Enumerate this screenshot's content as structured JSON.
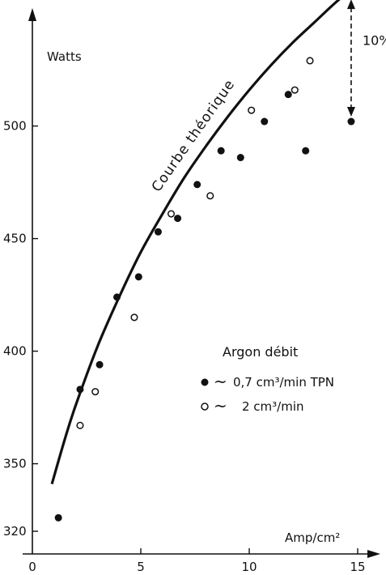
{
  "chart_data": {
    "type": "scatter",
    "xlabel": "Amp/cm²",
    "ylabel": "Watts",
    "xlim": [
      0,
      16
    ],
    "ylim": [
      320,
      560
    ],
    "x_ticks": [
      {
        "value": 0,
        "label": "0"
      },
      {
        "value": 5,
        "label": "5"
      },
      {
        "value": 10,
        "label": "10"
      },
      {
        "value": 15,
        "label": "15"
      }
    ],
    "y_ticks": [
      {
        "value": 320,
        "label": "320"
      },
      {
        "value": 350,
        "label": "350"
      },
      {
        "value": 400,
        "label": "400"
      },
      {
        "value": 450,
        "label": "450"
      },
      {
        "value": 500,
        "label": "500"
      }
    ],
    "theoretical_curve": {
      "label": "Courbe théorique",
      "points": [
        [
          0.9,
          341
        ],
        [
          1.5,
          361
        ],
        [
          2.0,
          376
        ],
        [
          3.0,
          402
        ],
        [
          4.0,
          424
        ],
        [
          5.0,
          444
        ],
        [
          6.0,
          461
        ],
        [
          7.0,
          477
        ],
        [
          8.0,
          491
        ],
        [
          9.0,
          504
        ],
        [
          10.0,
          516
        ],
        [
          11.0,
          527
        ],
        [
          12.0,
          537
        ],
        [
          13.0,
          546
        ],
        [
          14.0,
          555
        ],
        [
          15.0,
          563
        ],
        [
          15.5,
          567
        ]
      ]
    },
    "legend": {
      "title": "Argon débit",
      "entries": [
        {
          "marker": "filled",
          "symbol": "~",
          "text": "0,7 cm³/min TPN"
        },
        {
          "marker": "open",
          "symbol": "~",
          "text": "2 cm³/min"
        }
      ]
    },
    "series": [
      {
        "marker": "filled",
        "points": [
          [
            1.2,
            326
          ],
          [
            2.2,
            383
          ],
          [
            3.1,
            394
          ],
          [
            3.9,
            424
          ],
          [
            4.9,
            433
          ],
          [
            5.8,
            453
          ],
          [
            6.7,
            459
          ],
          [
            7.6,
            474
          ],
          [
            8.7,
            489
          ],
          [
            9.6,
            486
          ],
          [
            10.7,
            502
          ],
          [
            11.8,
            514
          ],
          [
            12.6,
            489
          ],
          [
            14.7,
            502
          ]
        ]
      },
      {
        "marker": "open",
        "points": [
          [
            2.2,
            367
          ],
          [
            2.9,
            382
          ],
          [
            4.7,
            415
          ],
          [
            6.4,
            461
          ],
          [
            8.2,
            469
          ],
          [
            10.1,
            507
          ],
          [
            12.1,
            516
          ],
          [
            12.8,
            529
          ]
        ]
      }
    ],
    "annotation": {
      "text": "10%",
      "x": 14.7,
      "y_from": 557,
      "y_to": 502
    }
  }
}
